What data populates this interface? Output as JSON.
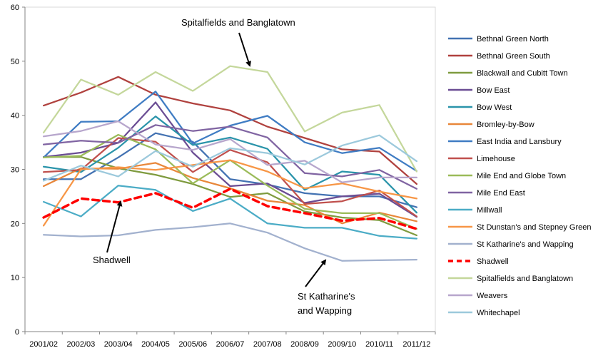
{
  "chart_data": {
    "type": "line",
    "categories": [
      "2001/02",
      "2002/03",
      "2003/04",
      "2004/05",
      "2005/06",
      "2006/07",
      "2007/08",
      "2008/09",
      "2009/10",
      "2010/11",
      "2011/12"
    ],
    "ylim": [
      0,
      60
    ],
    "yticks": [
      0,
      10,
      20,
      30,
      40,
      50,
      60
    ],
    "grid": false,
    "legend_position": "right",
    "series": [
      {
        "name": "Bethnal Green North",
        "color": "#4372B2",
        "values": [
          28.2,
          28.2,
          32.2,
          36.7,
          35.1,
          28.2,
          27.2,
          25.6,
          25.0,
          25.0,
          23.0
        ]
      },
      {
        "name": "Bethnal Green South",
        "color": "#B0413E",
        "values": [
          41.8,
          44.2,
          47.1,
          43.8,
          42.2,
          40.9,
          37.9,
          35.8,
          33.7,
          33.3,
          27.3
        ]
      },
      {
        "name": "Blackwall and Cubitt Town",
        "color": "#7F9B3F",
        "values": [
          32.3,
          32.3,
          30.2,
          29.0,
          27.3,
          24.9,
          25.6,
          22.2,
          21.1,
          20.6,
          17.8
        ]
      },
      {
        "name": "Bow East",
        "color": "#6A4C93",
        "values": [
          32.3,
          33.1,
          34.9,
          42.4,
          33.1,
          26.9,
          27.4,
          23.8,
          25.0,
          25.5,
          21.2
        ]
      },
      {
        "name": "Bow West",
        "color": "#2A94AA",
        "values": [
          30.5,
          29.5,
          34.0,
          39.8,
          34.5,
          35.9,
          33.8,
          26.2,
          29.6,
          29.0,
          22.0
        ]
      },
      {
        "name": "Bromley-by-Bow",
        "color": "#E8873A",
        "values": [
          26.9,
          30.2,
          30.1,
          31.2,
          28.4,
          26.5,
          24.2,
          23.4,
          20.0,
          22.0,
          20.4
        ]
      },
      {
        "name": "East India and Lansbury",
        "color": "#3F7CC3",
        "values": [
          32.2,
          38.8,
          38.9,
          44.4,
          34.8,
          38.1,
          39.9,
          35.0,
          33.0,
          34.0,
          29.7
        ]
      },
      {
        "name": "Limehouse",
        "color": "#C0504D",
        "values": [
          29.5,
          29.9,
          35.8,
          35.1,
          29.5,
          33.6,
          31.3,
          23.6,
          24.1,
          26.1,
          21.3
        ]
      },
      {
        "name": "Mile End and Globe Town",
        "color": "#9BBB59",
        "values": [
          32.2,
          32.5,
          36.4,
          33.7,
          27.4,
          31.7,
          27.0,
          22.7,
          21.9,
          21.9,
          19.0
        ]
      },
      {
        "name": "Mile End East",
        "color": "#8064A2",
        "values": [
          34.6,
          35.3,
          34.9,
          38.2,
          37.1,
          37.9,
          35.9,
          29.3,
          28.7,
          29.9,
          26.4
        ]
      },
      {
        "name": "Millwall",
        "color": "#4BACC6",
        "values": [
          24.0,
          21.3,
          27.0,
          26.2,
          22.3,
          24.6,
          20.0,
          19.2,
          19.2,
          17.7,
          17.2
        ]
      },
      {
        "name": "St Dunstan's and Stepney Green",
        "color": "#F79646",
        "values": [
          19.6,
          30.0,
          30.4,
          29.9,
          30.8,
          31.7,
          29.6,
          26.5,
          27.4,
          25.9,
          24.6
        ]
      },
      {
        "name": "St Katharine's and Wapping",
        "color": "#A2B1CE",
        "values": [
          17.9,
          17.6,
          17.8,
          18.8,
          19.3,
          20.0,
          18.3,
          15.4,
          13.1,
          13.2,
          13.3
        ]
      },
      {
        "name": "Shadwell",
        "color": "#FF0000",
        "dashed": true,
        "values": [
          21.1,
          24.6,
          23.9,
          25.6,
          22.9,
          26.4,
          23.2,
          21.9,
          20.5,
          21.0,
          19.0
        ]
      },
      {
        "name": "Spitalfields and Banglatown",
        "color": "#C4D79B",
        "values": [
          36.8,
          46.6,
          43.8,
          48.0,
          44.5,
          49.1,
          48.0,
          37.0,
          40.5,
          41.9,
          29.6
        ]
      },
      {
        "name": "Weavers",
        "color": "#B7A6CC",
        "values": [
          36.1,
          37.1,
          38.9,
          34.6,
          33.6,
          35.6,
          30.8,
          31.6,
          27.6,
          28.5,
          28.5
        ]
      },
      {
        "name": "Whitechapel",
        "color": "#9CC9DC",
        "values": [
          27.9,
          30.7,
          28.7,
          33.4,
          30.5,
          33.9,
          33.0,
          30.9,
          34.4,
          36.3,
          31.5
        ]
      }
    ],
    "annotations": [
      {
        "text": "Spitalfields and Banglatown"
      },
      {
        "text": "Shadwell"
      },
      {
        "text": "St Katharine's"
      },
      {
        "text": "and Wapping"
      }
    ]
  }
}
